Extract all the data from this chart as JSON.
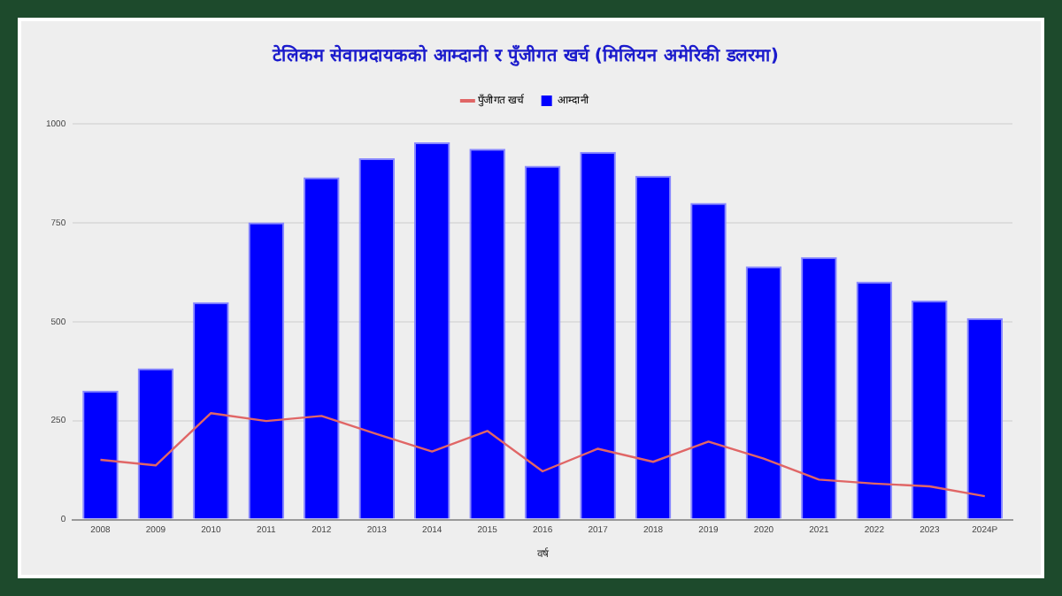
{
  "chart_data": {
    "type": "bar",
    "title": "टेलिकम सेवाप्रदायकको आम्दानी र पुँजीगत खर्च (मिलियन अमेरिकी डलरमा)",
    "xlabel": "वर्ष",
    "categories": [
      "2008",
      "2009",
      "2010",
      "2011",
      "2012",
      "2013",
      "2014",
      "2015",
      "2016",
      "2017",
      "2018",
      "2019",
      "2020",
      "2021",
      "2022",
      "2023",
      "2024P"
    ],
    "series": [
      {
        "name": "पुँजीगत खर्च",
        "type": "line",
        "color": "#e06666",
        "values": [
          151,
          137,
          269,
          249,
          262,
          216,
          172,
          224,
          122,
          179,
          146,
          197,
          154,
          101,
          91,
          84,
          59
        ]
      },
      {
        "name": "आम्दानी",
        "color": "#0000ff",
        "values": [
          326,
          382,
          549,
          751,
          865,
          913,
          953,
          937,
          894,
          929,
          869,
          800,
          640,
          663,
          601,
          554,
          509
        ]
      }
    ],
    "ylim": [
      0,
      1000
    ],
    "yticks": [
      0,
      250,
      500,
      750,
      1000
    ],
    "grid": "y",
    "legend": "top",
    "marker": "none"
  }
}
